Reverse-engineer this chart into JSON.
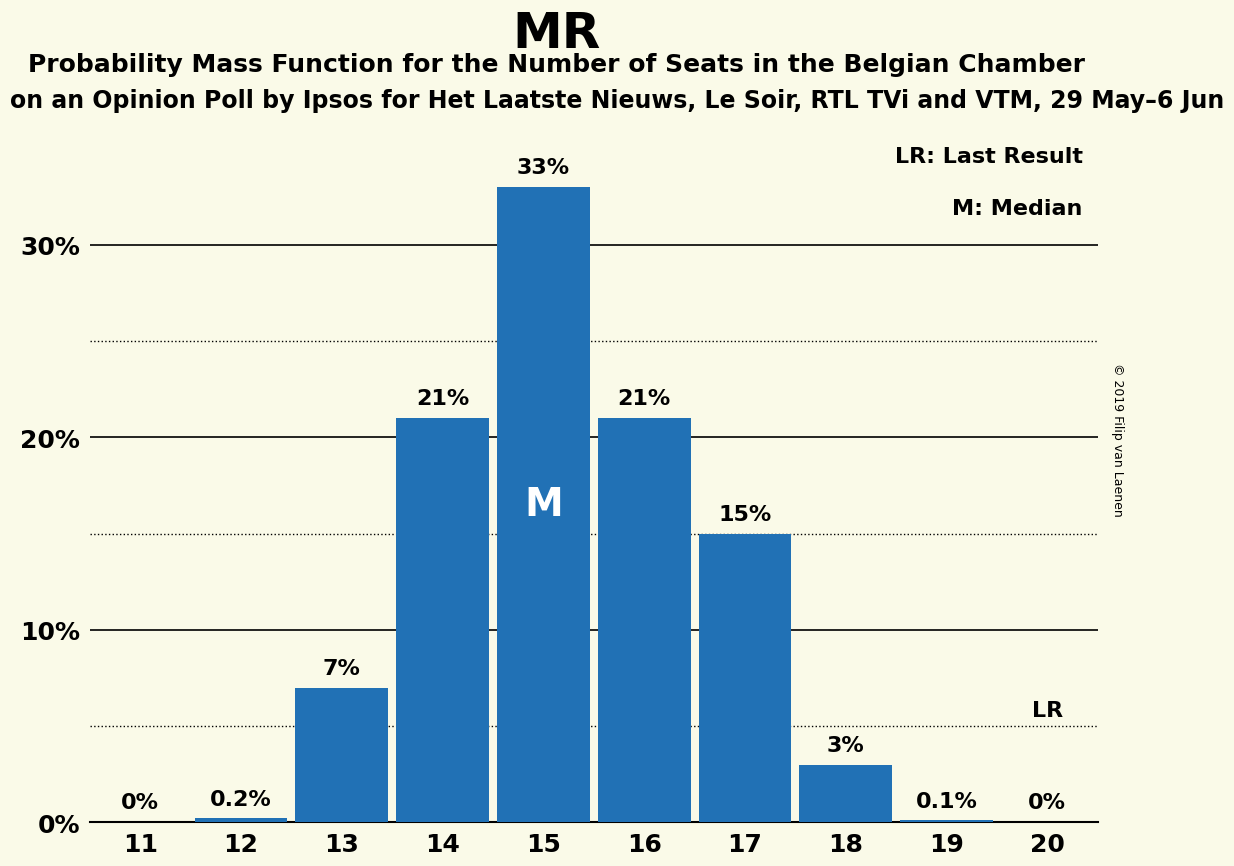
{
  "title": "MR",
  "subtitle1": "Probability Mass Function for the Number of Seats in the Belgian Chamber",
  "subtitle2": "on an Opinion Poll by Ipsos for Het Laatste Nieuws, Le Soir, RTL TVi and VTM, 29 May–6 Jun",
  "copyright": "© 2019 Filip van Laenen",
  "seats": [
    11,
    12,
    13,
    14,
    15,
    16,
    17,
    18,
    19,
    20
  ],
  "probabilities": [
    0.0,
    0.2,
    7.0,
    21.0,
    33.0,
    21.0,
    15.0,
    3.0,
    0.1,
    0.0
  ],
  "labels": [
    "0%",
    "0.2%",
    "7%",
    "21%",
    "33%",
    "21%",
    "15%",
    "3%",
    "0.1%",
    "0%"
  ],
  "bar_color": "#2171b5",
  "background_color": "#fafae8",
  "median_seat": 15,
  "median_label": "M",
  "lr_seat": 20,
  "lr_label": "LR",
  "ylim": [
    0,
    36
  ],
  "solid_gridlines": [
    10,
    20,
    30
  ],
  "dotted_gridlines": [
    5,
    15,
    25
  ],
  "ytick_positions": [
    0,
    10,
    20,
    30
  ],
  "ytick_labels": [
    "0%",
    "10%",
    "20%",
    "30%"
  ],
  "legend_lr": "LR: Last Result",
  "legend_m": "M: Median",
  "title_fontsize": 36,
  "subtitle1_fontsize": 18,
  "subtitle2_fontsize": 17,
  "bar_label_fontsize": 16,
  "axis_label_fontsize": 18,
  "legend_fontsize": 16,
  "copyright_fontsize": 9,
  "median_fontsize": 28
}
